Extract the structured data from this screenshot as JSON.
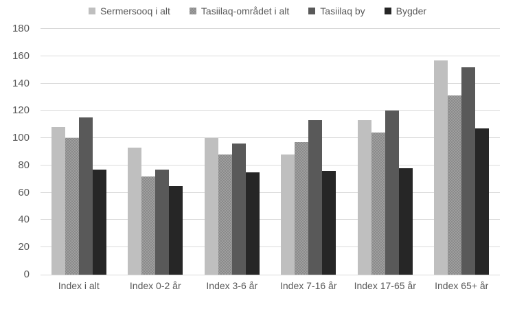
{
  "chart_data": {
    "type": "bar",
    "title": "",
    "xlabel": "",
    "ylabel": "",
    "categories": [
      "Index i alt",
      "Index 0-2 år",
      "Index 3-6 år",
      "Index 7-16 år",
      "Index 17-65 år",
      "Index 65+ år"
    ],
    "series": [
      {
        "name": "Sermersooq i alt",
        "color": "#bfbfbf",
        "pattern": "solid",
        "values": [
          108,
          93,
          100,
          88,
          113,
          157
        ]
      },
      {
        "name": "Tasiilaq-området i alt",
        "color": "#8a8a8a",
        "pattern": "dots",
        "values": [
          100,
          72,
          88,
          97,
          104,
          131
        ]
      },
      {
        "name": "Tasiilaq by",
        "color": "#595959",
        "pattern": "solid",
        "values": [
          115,
          77,
          96,
          113,
          120,
          152
        ]
      },
      {
        "name": "Bygder",
        "color": "#262626",
        "pattern": "solid",
        "values": [
          77,
          65,
          75,
          76,
          78,
          107
        ]
      }
    ],
    "ylim": [
      0,
      180
    ],
    "yticks": [
      0,
      20,
      40,
      60,
      80,
      100,
      120,
      140,
      160,
      180
    ],
    "grid": true,
    "legend_position": "top",
    "colors": {
      "gridline": "#d9d9d9",
      "axis_text": "#595959",
      "background": "#ffffff"
    }
  }
}
